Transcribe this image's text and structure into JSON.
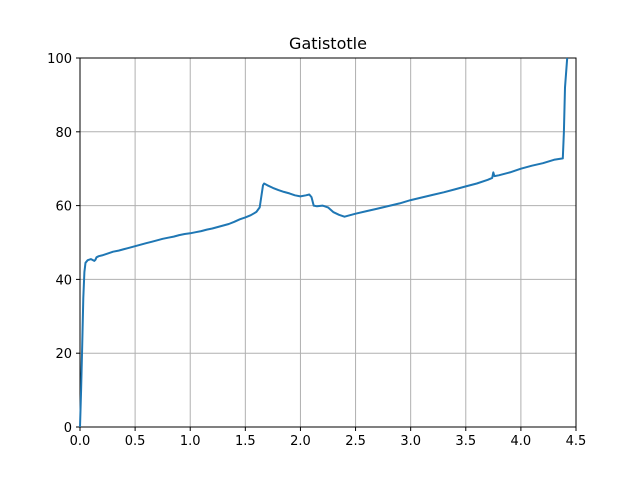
{
  "chart_data": {
    "type": "line",
    "title": "Gatistotle",
    "xlabel": "",
    "ylabel": "",
    "xlim": [
      0.0,
      4.5
    ],
    "ylim": [
      0,
      100
    ],
    "x_ticks": [
      0.0,
      0.5,
      1.0,
      1.5,
      2.0,
      2.5,
      3.0,
      3.5,
      4.0,
      4.5
    ],
    "x_tick_labels": [
      "0.0",
      "0.5",
      "1.0",
      "1.5",
      "2.0",
      "2.5",
      "3.0",
      "3.5",
      "4.0",
      "4.5"
    ],
    "y_ticks": [
      0,
      20,
      40,
      60,
      80,
      100
    ],
    "y_tick_labels": [
      "0",
      "20",
      "40",
      "60",
      "80",
      "100"
    ],
    "grid": true,
    "series": [
      {
        "color": "#1f77b4",
        "x": [
          0.0,
          0.01,
          0.02,
          0.03,
          0.04,
          0.05,
          0.07,
          0.1,
          0.13,
          0.14,
          0.15,
          0.17,
          0.2,
          0.25,
          0.3,
          0.35,
          0.4,
          0.45,
          0.5,
          0.55,
          0.6,
          0.65,
          0.7,
          0.75,
          0.8,
          0.85,
          0.9,
          0.95,
          1.0,
          1.05,
          1.1,
          1.15,
          1.2,
          1.25,
          1.3,
          1.35,
          1.4,
          1.45,
          1.5,
          1.55,
          1.6,
          1.63,
          1.66,
          1.67,
          1.7,
          1.75,
          1.8,
          1.85,
          1.9,
          1.95,
          2.0,
          2.05,
          2.08,
          2.1,
          2.12,
          2.15,
          2.2,
          2.25,
          2.3,
          2.35,
          2.4,
          2.45,
          2.5,
          2.6,
          2.7,
          2.8,
          2.9,
          3.0,
          3.1,
          3.2,
          3.3,
          3.4,
          3.5,
          3.6,
          3.7,
          3.74,
          3.75,
          3.76,
          3.8,
          3.9,
          4.0,
          4.1,
          4.2,
          4.3,
          4.38,
          4.39,
          4.4,
          4.42
        ],
        "y": [
          0,
          10,
          22,
          35,
          42,
          44.5,
          45.2,
          45.5,
          45,
          45.3,
          46.0,
          46.3,
          46.5,
          47.0,
          47.5,
          47.8,
          48.2,
          48.6,
          49.0,
          49.4,
          49.8,
          50.2,
          50.6,
          51.0,
          51.3,
          51.6,
          52.0,
          52.3,
          52.5,
          52.8,
          53.1,
          53.5,
          53.8,
          54.2,
          54.6,
          55.0,
          55.6,
          56.3,
          56.8,
          57.4,
          58.3,
          59.5,
          65.5,
          66.0,
          65.5,
          64.8,
          64.2,
          63.7,
          63.3,
          62.8,
          62.5,
          62.8,
          63.0,
          62.3,
          60.0,
          59.8,
          60.0,
          59.5,
          58.2,
          57.5,
          57.0,
          57.4,
          57.8,
          58.5,
          59.2,
          59.9,
          60.6,
          61.5,
          62.2,
          62.9,
          63.6,
          64.4,
          65.2,
          66.0,
          67.0,
          67.5,
          69.0,
          68.0,
          68.2,
          69.0,
          70.0,
          70.8,
          71.5,
          72.4,
          72.8,
          80.0,
          92.0,
          100
        ]
      }
    ]
  }
}
